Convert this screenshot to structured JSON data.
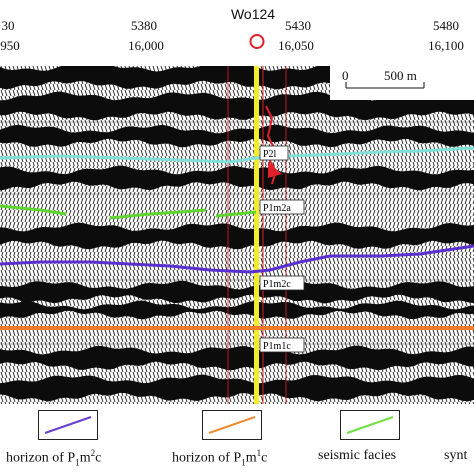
{
  "top_axis": {
    "cdp_ticks": [
      "5380",
      "5430",
      "5480"
    ],
    "partial_cdp_tick": "30",
    "trace_ticks": [
      "16,000",
      "16,050",
      "16,100"
    ],
    "partial_trace_tick": "950",
    "well_name": "Wo124"
  },
  "scale_bar": {
    "start": "0",
    "end": "500 m"
  },
  "horizons": {
    "p2l": "P2l",
    "p1m2a": "P1m2a",
    "p1m2c": "P1m2c",
    "p1m1c": "P1m1c"
  },
  "legend": {
    "items": [
      {
        "prefix": "horizon of P",
        "sub": "1",
        "mid": "m",
        "sup": "2",
        "suffix": "c",
        "color": "#6a3fd0"
      },
      {
        "prefix": "horizon of P",
        "sub": "1",
        "mid": "m",
        "sup": "1",
        "suffix": "c",
        "color": "#f08a30"
      },
      {
        "prefix": "seismic facies",
        "sub": "",
        "mid": "",
        "sup": "",
        "suffix": "",
        "color": "#6fe040"
      },
      {
        "prefix": "synt",
        "sub": "",
        "mid": "",
        "sup": "",
        "suffix": "",
        "color": "#222222"
      }
    ]
  },
  "colors": {
    "cyan_horizon": "#7fe0d8",
    "green_facies": "#5fd630",
    "purple_horizon": "#5a2fd0",
    "orange_horizon": "#f07a28",
    "well_yellow": "#f2ec2a",
    "well_red": "#e0202a"
  }
}
